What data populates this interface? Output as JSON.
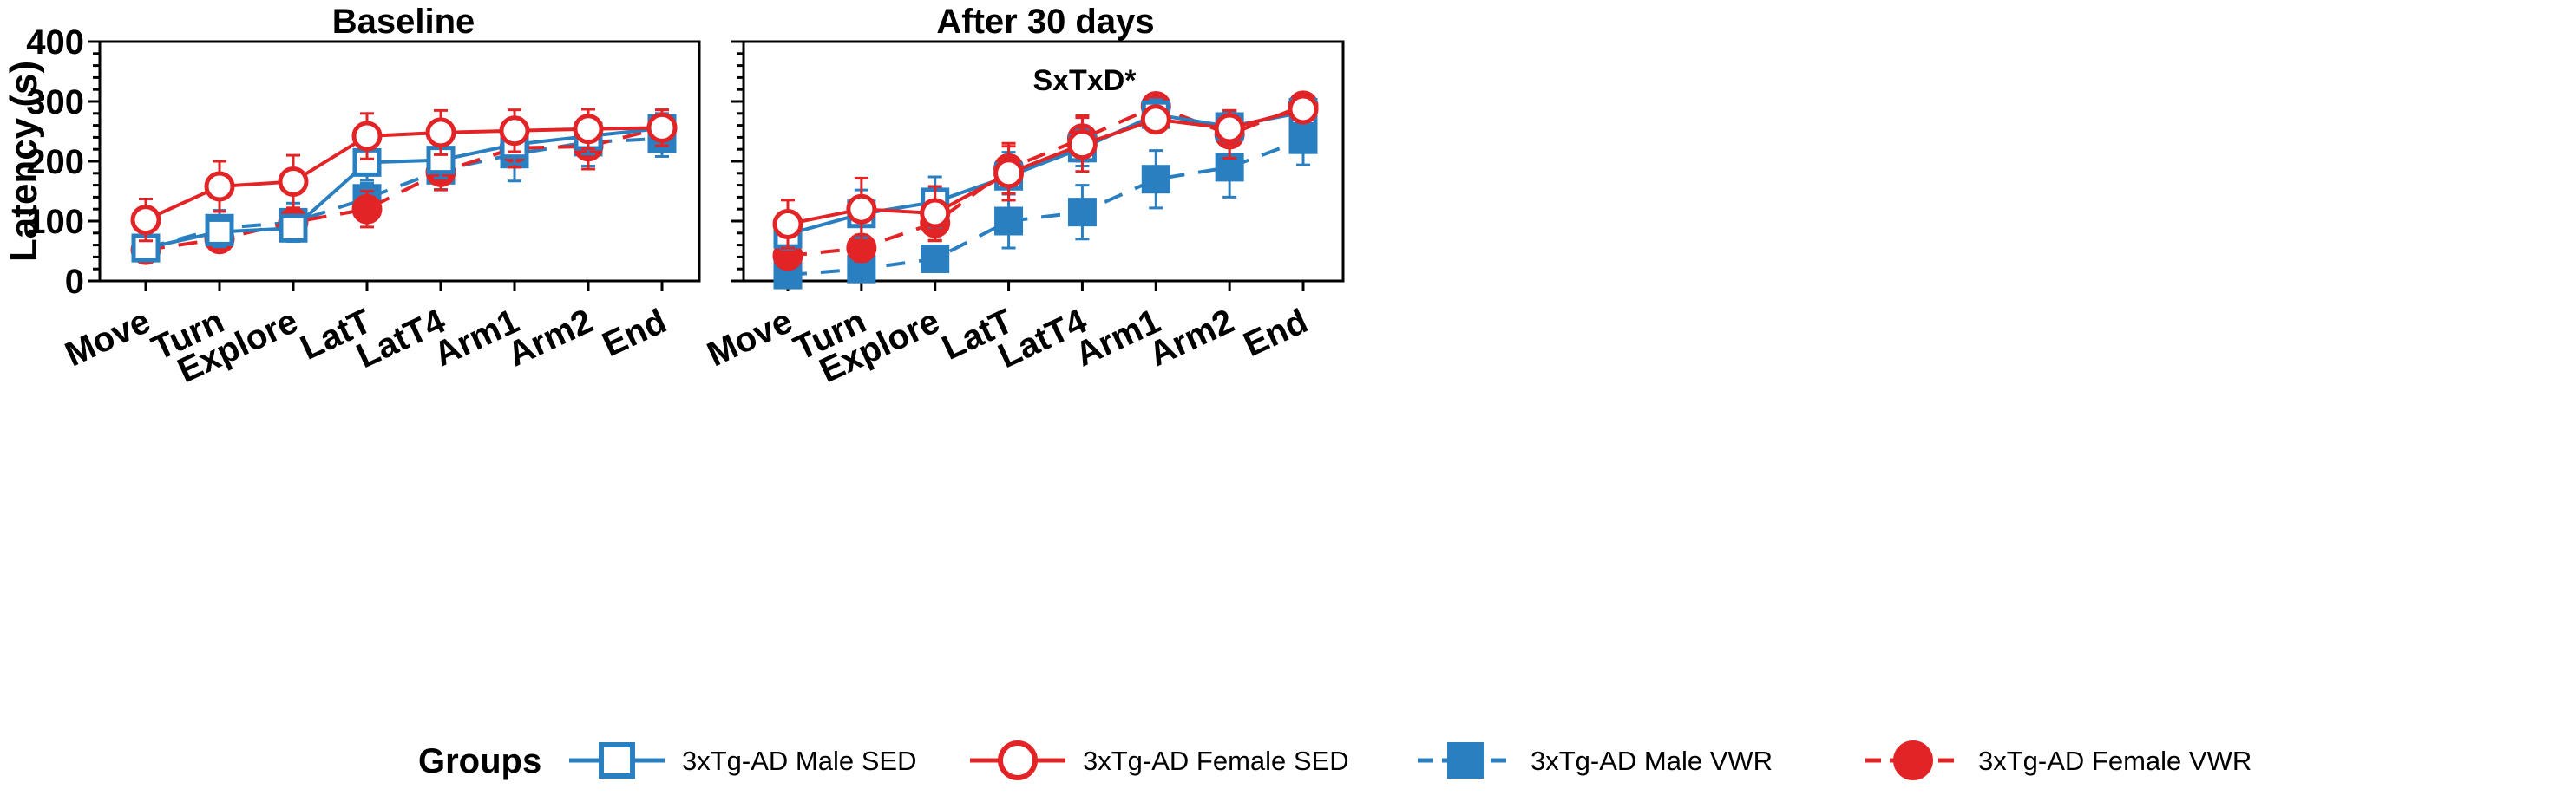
{
  "chart_data": [
    {
      "type": "line",
      "title": "Baseline",
      "xlabel": "",
      "ylabel": "Latency (s)",
      "ylim": [
        0,
        400
      ],
      "yticks": [
        0,
        100,
        200,
        300,
        400
      ],
      "categories": [
        "Move",
        "Turn",
        "Explore",
        "LatT",
        "LatT4",
        "Arm1",
        "Arm2",
        "End"
      ],
      "annotation": "",
      "series": [
        {
          "name": "3xTg-AD Male SED",
          "values": [
            55,
            82,
            88,
            198,
            202,
            228,
            242,
            255
          ],
          "errors": [
            18,
            25,
            22,
            30,
            30,
            32,
            30,
            25
          ]
        },
        {
          "name": "3xTg-AD Female SED",
          "values": [
            102,
            158,
            166,
            242,
            248,
            251,
            254,
            256
          ],
          "errors": [
            35,
            42,
            44,
            38,
            37,
            35,
            33,
            30
          ]
        },
        {
          "name": "3xTg-AD Male VWR",
          "values": [
            55,
            88,
            98,
            138,
            185,
            212,
            232,
            238
          ],
          "errors": [
            20,
            30,
            32,
            25,
            32,
            45,
            40,
            30
          ]
        },
        {
          "name": "3xTg-AD Female VWR",
          "values": [
            52,
            70,
            98,
            120,
            182,
            222,
            225,
            256
          ],
          "errors": [
            18,
            20,
            22,
            30,
            30,
            32,
            38,
            30
          ]
        }
      ]
    },
    {
      "type": "line",
      "title": "After 30 days",
      "xlabel": "",
      "ylabel": "",
      "ylim": [
        0,
        400
      ],
      "yticks": [
        0,
        100,
        200,
        300,
        400
      ],
      "categories": [
        "Move",
        "Turn",
        "Explore",
        "LatT",
        "LatT4",
        "Arm1",
        "Arm2",
        "End"
      ],
      "annotation": "SxTxD*",
      "series": [
        {
          "name": "3xTg-AD Male SED",
          "values": [
            78,
            112,
            132,
            175,
            222,
            278,
            258,
            282
          ],
          "errors": [
            25,
            40,
            42,
            40,
            30,
            25,
            25,
            15
          ]
        },
        {
          "name": "3xTg-AD Female SED",
          "values": [
            95,
            120,
            113,
            180,
            228,
            270,
            255,
            287
          ],
          "errors": [
            40,
            52,
            45,
            45,
            45,
            20,
            30,
            15
          ]
        },
        {
          "name": "3xTg-AD Male VWR",
          "values": [
            10,
            20,
            37,
            100,
            115,
            170,
            190,
            236
          ],
          "errors": [
            10,
            12,
            15,
            45,
            45,
            48,
            50,
            42
          ]
        },
        {
          "name": "3xTg-AD Female VWR",
          "values": [
            42,
            55,
            97,
            188,
            238,
            292,
            245,
            293
          ],
          "errors": [
            20,
            22,
            30,
            42,
            38,
            12,
            40,
            12
          ]
        }
      ]
    }
  ],
  "legend": {
    "title": "Groups",
    "entries": [
      {
        "label": "3xTg-AD Male SED",
        "color": "#2a7fc0",
        "marker": "square-open",
        "dash": "solid"
      },
      {
        "label": "3xTg-AD Female SED",
        "color": "#e32426",
        "marker": "circle-open",
        "dash": "solid"
      },
      {
        "label": "3xTg-AD Male VWR",
        "color": "#2a7fc0",
        "marker": "square-filled",
        "dash": "dashed"
      },
      {
        "label": "3xTg-AD Female VWR",
        "color": "#e32426",
        "marker": "circle-filled",
        "dash": "dashed"
      }
    ]
  },
  "colors": {
    "blue": "#2a7fc0",
    "red": "#e32426",
    "axis": "#000000"
  }
}
